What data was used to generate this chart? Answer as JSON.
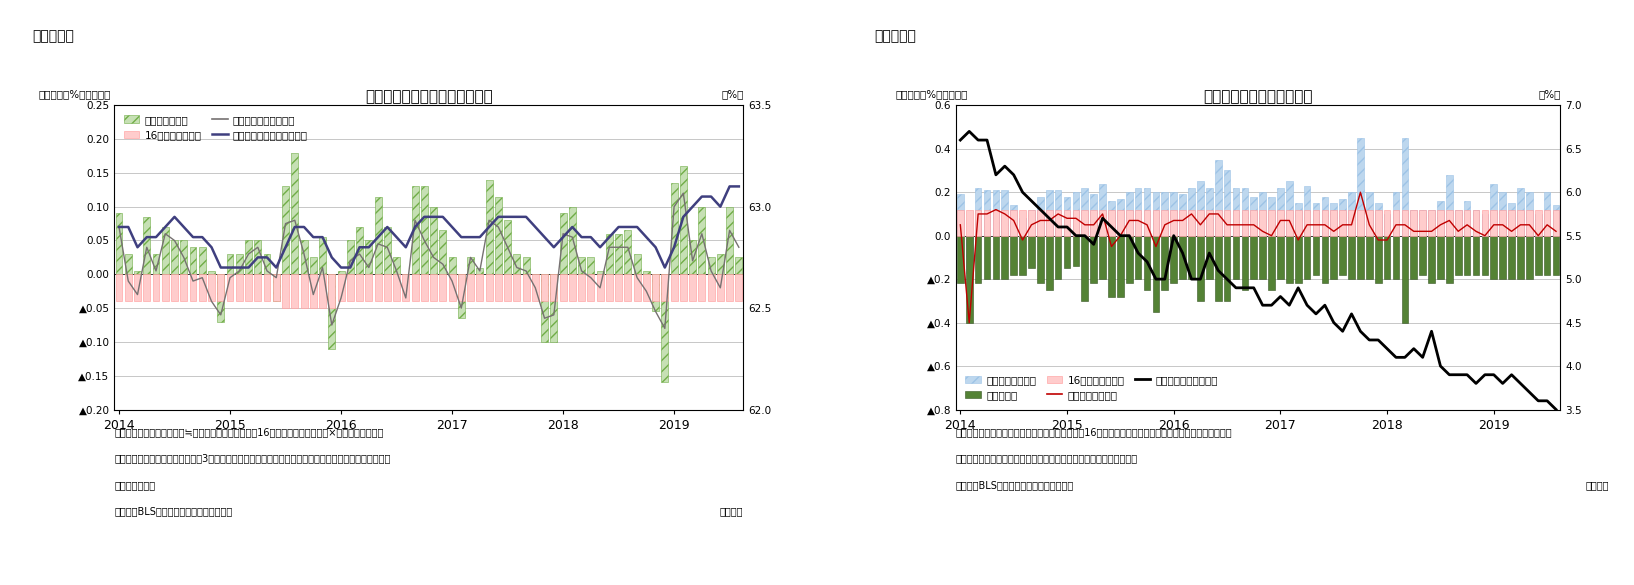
{
  "fig5": {
    "title": "労働参加率の変化（要因分解）",
    "fig_label": "（図表５）",
    "ylabel_left": "（前月差、%ポイント）",
    "ylabel_right": "（%）",
    "note1": "（注）労働参加率の前月差≒（労働力人口の伸び率－16才以上人口の伸び率）×前月の労働参加率",
    "note2": "　　グラフの前月差データは後方3カ月移動平均。また、年次ごとに人口推計が変更になっているため、",
    "note3": "　　断層を調整",
    "source": "（資料）BLSよりニッセイ基礎研究所作成",
    "monthly": "（月次）",
    "ylim_left": [
      -0.2,
      0.25
    ],
    "ylim_right": [
      62.0,
      63.5
    ],
    "yticks_left": [
      0.25,
      0.2,
      0.15,
      0.1,
      0.05,
      0.0,
      -0.05,
      -0.1,
      -0.15,
      -0.2
    ],
    "yticks_right": [
      63.5,
      63.0,
      62.5,
      62.0
    ],
    "labor_force_factor": [
      0.09,
      0.03,
      0.005,
      0.085,
      0.03,
      0.07,
      0.05,
      0.05,
      0.04,
      0.04,
      0.005,
      -0.07,
      0.03,
      0.03,
      0.05,
      0.05,
      0.03,
      -0.04,
      0.13,
      0.18,
      0.05,
      0.025,
      0.055,
      -0.11,
      0.005,
      0.05,
      0.07,
      0.05,
      0.115,
      0.07,
      0.025,
      0.0,
      0.13,
      0.13,
      0.1,
      0.065,
      0.025,
      -0.065,
      0.025,
      0.01,
      0.14,
      0.115,
      0.08,
      0.03,
      0.025,
      0.0,
      -0.1,
      -0.1,
      0.09,
      0.1,
      0.025,
      0.025,
      0.005,
      0.06,
      0.06,
      0.065,
      0.03,
      0.005,
      -0.055,
      -0.16,
      0.135,
      0.16,
      0.05,
      0.1,
      0.025,
      0.03,
      0.1,
      0.025
    ],
    "pop16_factor": [
      -0.04,
      -0.04,
      -0.04,
      -0.04,
      -0.04,
      -0.04,
      -0.04,
      -0.04,
      -0.04,
      -0.04,
      -0.04,
      -0.04,
      -0.04,
      -0.04,
      -0.04,
      -0.04,
      -0.04,
      -0.04,
      -0.05,
      -0.05,
      -0.05,
      -0.05,
      -0.05,
      -0.05,
      -0.04,
      -0.04,
      -0.04,
      -0.04,
      -0.04,
      -0.04,
      -0.04,
      -0.04,
      -0.04,
      -0.04,
      -0.04,
      -0.04,
      -0.04,
      -0.04,
      -0.04,
      -0.04,
      -0.04,
      -0.04,
      -0.04,
      -0.04,
      -0.04,
      -0.04,
      -0.04,
      -0.04,
      -0.04,
      -0.04,
      -0.04,
      -0.04,
      -0.04,
      -0.04,
      -0.04,
      -0.04,
      -0.04,
      -0.04,
      -0.04,
      -0.04,
      -0.04,
      -0.04,
      -0.04,
      -0.04,
      -0.04,
      -0.04,
      -0.04,
      -0.04
    ],
    "lfpr_mom": [
      0.07,
      -0.01,
      -0.03,
      0.04,
      0.005,
      0.06,
      0.05,
      0.025,
      -0.01,
      -0.005,
      -0.04,
      -0.06,
      -0.005,
      0.005,
      0.03,
      0.04,
      0.005,
      -0.005,
      0.075,
      0.08,
      0.03,
      -0.03,
      0.01,
      -0.075,
      -0.035,
      0.02,
      0.03,
      0.01,
      0.045,
      0.04,
      0.005,
      -0.035,
      0.08,
      0.05,
      0.025,
      0.015,
      -0.01,
      -0.05,
      0.025,
      0.005,
      0.08,
      0.07,
      0.04,
      0.01,
      0.005,
      -0.02,
      -0.065,
      -0.06,
      0.06,
      0.055,
      0.005,
      -0.005,
      -0.02,
      0.04,
      0.04,
      0.04,
      -0.005,
      -0.025,
      -0.055,
      -0.08,
      0.1,
      0.12,
      0.02,
      0.06,
      0.005,
      -0.02,
      0.065,
      0.04
    ],
    "lfpr_level": [
      62.9,
      62.9,
      62.8,
      62.85,
      62.85,
      62.9,
      62.95,
      62.9,
      62.85,
      62.85,
      62.8,
      62.7,
      62.7,
      62.7,
      62.7,
      62.75,
      62.75,
      62.7,
      62.8,
      62.9,
      62.9,
      62.85,
      62.85,
      62.75,
      62.7,
      62.7,
      62.8,
      62.8,
      62.85,
      62.9,
      62.85,
      62.8,
      62.9,
      62.95,
      62.95,
      62.95,
      62.9,
      62.85,
      62.85,
      62.85,
      62.9,
      62.95,
      62.95,
      62.95,
      62.95,
      62.9,
      62.85,
      62.8,
      62.85,
      62.9,
      62.85,
      62.85,
      62.8,
      62.85,
      62.9,
      62.9,
      62.9,
      62.85,
      62.8,
      62.7,
      62.8,
      62.95,
      63.0,
      63.05,
      63.05,
      63.0,
      63.1,
      63.1
    ]
  },
  "fig6": {
    "title": "失業率の変化（要因分解）",
    "fig_label": "（図表６）",
    "ylabel_left": "（前月差、%ポイント）",
    "ylabel_right": "（%）",
    "note1": "（注）非労働力人口の増加、就業者人口の増加、16才以上人口の減少が、それぞれ失業率の改善要因。",
    "note2": "　　また、年次ごとに人口推計が変更になっているため、断層を調整",
    "source": "（資料）BLSよりニッセイ基礎研究所作成",
    "monthly": "（月次）",
    "ylim_left": [
      -0.8,
      0.6
    ],
    "ylim_right": [
      3.5,
      7.0
    ],
    "yticks_left": [
      0.6,
      0.4,
      0.2,
      0.0,
      -0.2,
      -0.4,
      -0.6,
      -0.8
    ],
    "yticks_right": [
      7.0,
      6.5,
      6.0,
      5.5,
      5.0,
      4.5,
      4.0,
      3.5
    ],
    "non_labor_factor": [
      0.19,
      -0.17,
      0.22,
      0.21,
      0.21,
      0.21,
      0.14,
      0.08,
      0.12,
      0.18,
      0.21,
      0.21,
      0.18,
      0.2,
      0.22,
      0.19,
      0.24,
      0.16,
      0.17,
      0.2,
      0.22,
      0.22,
      0.2,
      0.2,
      0.2,
      0.19,
      0.22,
      0.25,
      0.22,
      0.35,
      0.3,
      0.22,
      0.22,
      0.18,
      0.2,
      0.18,
      0.22,
      0.25,
      0.15,
      0.23,
      0.15,
      0.18,
      0.15,
      0.17,
      0.2,
      0.45,
      0.2,
      0.15,
      0.1,
      0.2,
      0.45,
      0.12,
      0.12,
      0.12,
      0.16,
      0.28,
      0.12,
      0.16,
      0.12,
      0.1,
      0.24,
      0.2,
      0.15,
      0.22,
      0.2,
      0.1,
      0.2,
      0.14
    ],
    "employed_factor": [
      -0.22,
      -0.4,
      -0.22,
      -0.2,
      -0.2,
      -0.2,
      -0.18,
      -0.18,
      -0.15,
      -0.22,
      -0.25,
      -0.2,
      -0.15,
      -0.14,
      -0.3,
      -0.22,
      -0.2,
      -0.28,
      -0.28,
      -0.22,
      -0.2,
      -0.25,
      -0.35,
      -0.25,
      -0.22,
      -0.2,
      -0.2,
      -0.3,
      -0.2,
      -0.3,
      -0.3,
      -0.2,
      -0.25,
      -0.2,
      -0.2,
      -0.25,
      -0.2,
      -0.22,
      -0.22,
      -0.2,
      -0.18,
      -0.22,
      -0.2,
      -0.18,
      -0.2,
      -0.2,
      -0.2,
      -0.22,
      -0.2,
      -0.2,
      -0.4,
      -0.2,
      -0.18,
      -0.22,
      -0.2,
      -0.22,
      -0.18,
      -0.18,
      -0.18,
      -0.18,
      -0.2,
      -0.2,
      -0.2,
      -0.2,
      -0.2,
      -0.18,
      -0.18,
      -0.18
    ],
    "pop16u_factor": [
      0.12,
      0.12,
      0.12,
      0.12,
      0.12,
      0.12,
      0.12,
      0.12,
      0.12,
      0.12,
      0.12,
      0.12,
      0.12,
      0.12,
      0.12,
      0.12,
      0.12,
      0.12,
      0.12,
      0.12,
      0.12,
      0.12,
      0.12,
      0.12,
      0.12,
      0.12,
      0.12,
      0.12,
      0.12,
      0.12,
      0.12,
      0.12,
      0.12,
      0.12,
      0.12,
      0.12,
      0.12,
      0.12,
      0.12,
      0.12,
      0.12,
      0.12,
      0.12,
      0.12,
      0.12,
      0.12,
      0.12,
      0.12,
      0.12,
      0.12,
      0.12,
      0.12,
      0.12,
      0.12,
      0.12,
      0.12,
      0.12,
      0.12,
      0.12,
      0.12,
      0.12,
      0.12,
      0.12,
      0.12,
      0.12,
      0.12,
      0.12,
      0.12
    ],
    "unemp_mom": [
      0.05,
      -0.4,
      0.1,
      0.1,
      0.12,
      0.1,
      0.07,
      -0.02,
      0.05,
      0.07,
      0.07,
      0.1,
      0.08,
      0.08,
      0.05,
      0.05,
      0.1,
      -0.05,
      0.0,
      0.07,
      0.07,
      0.05,
      -0.05,
      0.05,
      0.07,
      0.07,
      0.1,
      0.05,
      0.1,
      0.1,
      0.05,
      0.05,
      0.05,
      0.05,
      0.02,
      0.0,
      0.07,
      0.07,
      -0.02,
      0.05,
      0.05,
      0.05,
      0.02,
      0.05,
      0.05,
      0.2,
      0.05,
      -0.02,
      -0.02,
      0.05,
      0.05,
      0.02,
      0.02,
      0.02,
      0.05,
      0.07,
      0.02,
      0.05,
      0.02,
      0.0,
      0.05,
      0.05,
      0.02,
      0.05,
      0.05,
      0.0,
      0.05,
      0.02
    ],
    "unemp_level": [
      6.6,
      6.7,
      6.6,
      6.6,
      6.2,
      6.3,
      6.2,
      6.0,
      5.9,
      5.8,
      5.7,
      5.6,
      5.6,
      5.5,
      5.5,
      5.4,
      5.7,
      5.6,
      5.5,
      5.5,
      5.3,
      5.2,
      5.0,
      5.0,
      5.5,
      5.3,
      5.0,
      5.0,
      5.3,
      5.1,
      5.0,
      4.9,
      4.9,
      4.9,
      4.7,
      4.7,
      4.8,
      4.7,
      4.9,
      4.7,
      4.6,
      4.7,
      4.5,
      4.4,
      4.6,
      4.4,
      4.3,
      4.3,
      4.2,
      4.1,
      4.1,
      4.2,
      4.1,
      4.4,
      4.0,
      3.9,
      3.9,
      3.9,
      3.8,
      3.9,
      3.9,
      3.8,
      3.9,
      3.8,
      3.7,
      3.6,
      3.6,
      3.5
    ]
  },
  "n_months": 68,
  "background_color": "#ffffff",
  "grid_color": "#b0b0b0"
}
